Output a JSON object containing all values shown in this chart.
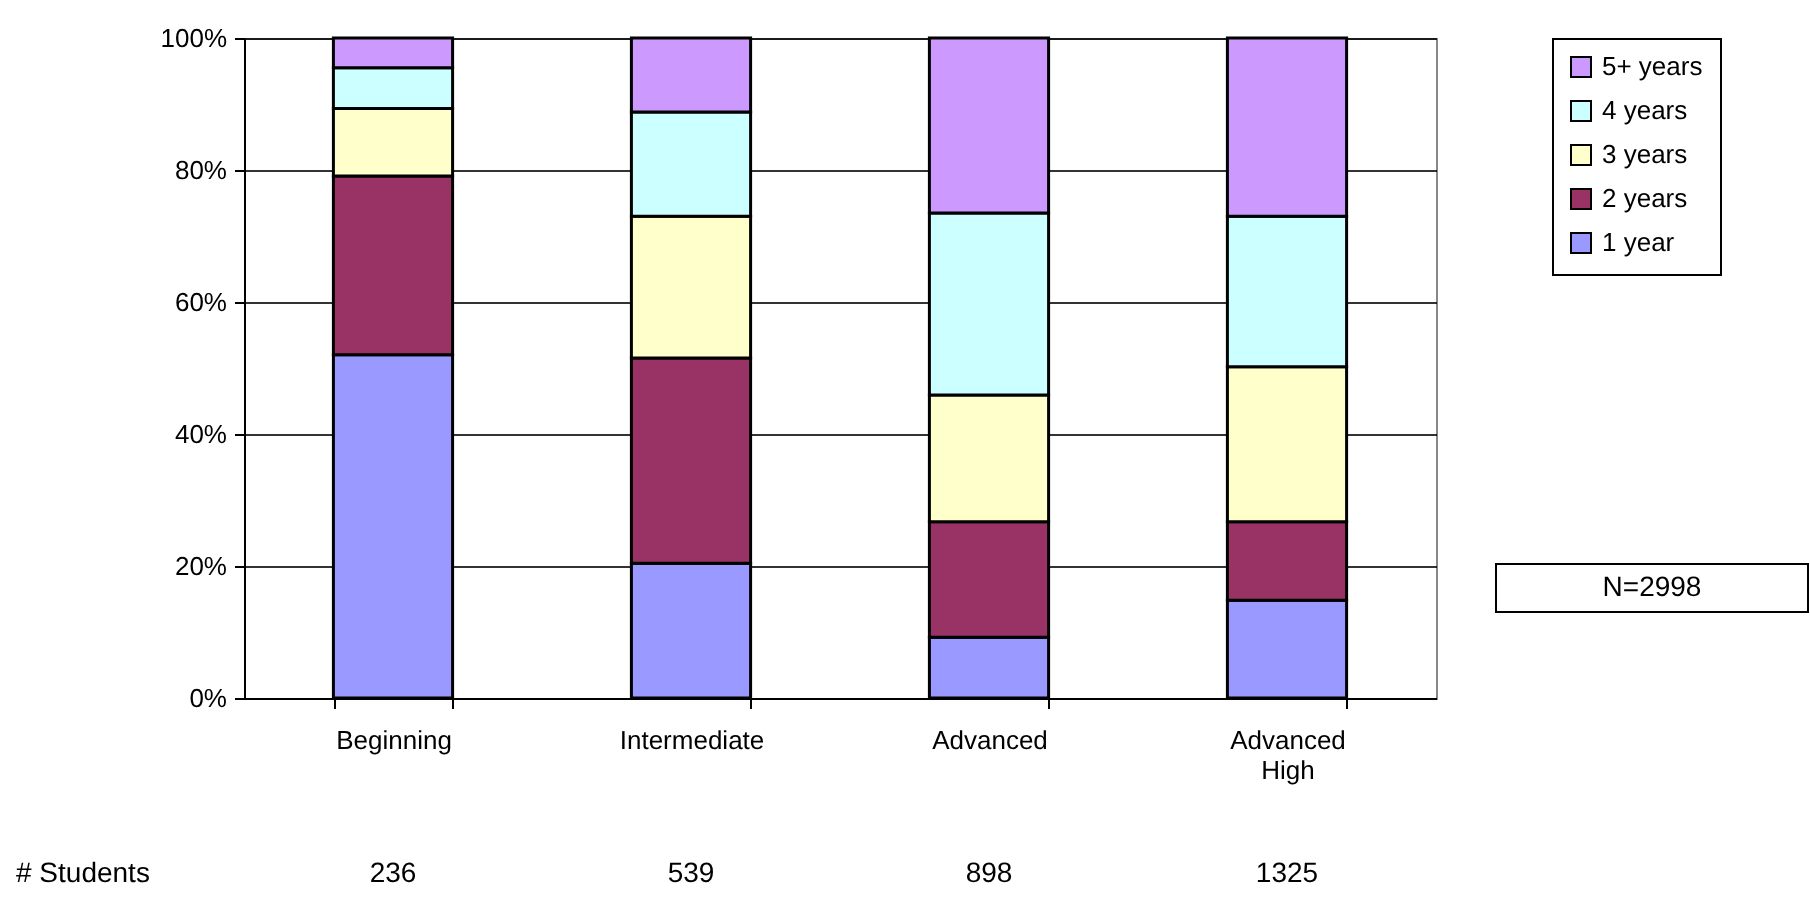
{
  "chart_data": {
    "type": "bar",
    "stacked": true,
    "categories": [
      "Beginning",
      "Intermediate",
      "Advanced",
      "Advanced High"
    ],
    "series": [
      {
        "name": "1 year",
        "color": "#9999ff",
        "values": [
          52.0,
          20.4,
          9.2,
          14.8
        ]
      },
      {
        "name": "2 years",
        "color": "#993366",
        "values": [
          27.1,
          31.1,
          17.5,
          11.9
        ]
      },
      {
        "name": "3 years",
        "color": "#ffffcc",
        "values": [
          10.2,
          21.5,
          19.2,
          23.5
        ]
      },
      {
        "name": "4 years",
        "color": "#ccffff",
        "values": [
          6.2,
          15.8,
          27.6,
          22.8
        ]
      },
      {
        "name": "5+ years",
        "color": "#cc99ff",
        "values": [
          4.5,
          11.2,
          26.5,
          27.0
        ]
      }
    ],
    "ylim": [
      0,
      100
    ],
    "yticks": [
      {
        "value": 0,
        "label": "0%"
      },
      {
        "value": 20,
        "label": "20%"
      },
      {
        "value": 40,
        "label": "40%"
      },
      {
        "value": 60,
        "label": "60%"
      },
      {
        "value": 80,
        "label": "80%"
      },
      {
        "value": 100,
        "label": "100%"
      }
    ],
    "grid": "y",
    "legend": "right",
    "annotations": [
      "# Students",
      "236",
      "539",
      "898",
      "1325",
      "N=2998"
    ]
  }
}
